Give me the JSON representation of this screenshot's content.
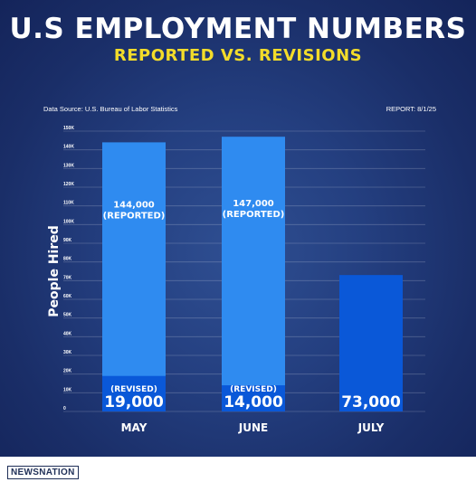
{
  "header": {
    "title": "U.S EMPLOYMENT NUMBERS",
    "subtitle": "REPORTED VS. REVISIONS",
    "source": "Data Source: U.S. Bureau of Labor Statistics",
    "report": "REPORT: 8/1/25"
  },
  "footer": {
    "brand": "NEWSNATION"
  },
  "colors": {
    "background": "#1f3a7a",
    "reported_bar": "#2f8bf0",
    "revised_bar": "#0a58d8",
    "title": "#ffffff",
    "subtitle": "#f3dc2a"
  },
  "chart_data": {
    "type": "bar",
    "title": "U.S EMPLOYMENT NUMBERS",
    "subtitle": "REPORTED VS. REVISIONS",
    "xlabel": "",
    "ylabel": "People Hired",
    "ylim": [
      0,
      150000
    ],
    "grid": true,
    "yticks": [
      "0",
      "10K",
      "20K",
      "30K",
      "40K",
      "50K",
      "60K",
      "70K",
      "80K",
      "90K",
      "100K",
      "110K",
      "120K",
      "130K",
      "140K",
      "150K"
    ],
    "categories": [
      "MAY",
      "JUNE",
      "JULY"
    ],
    "series": [
      {
        "name": "REPORTED",
        "values": [
          144000,
          147000,
          null
        ],
        "labels": [
          "144,000",
          "147,000",
          ""
        ],
        "label_suffix": "(REPORTED)"
      },
      {
        "name": "REVISED",
        "values": [
          19000,
          14000,
          73000
        ],
        "labels": [
          "19,000",
          "14,000",
          "73,000"
        ],
        "label_prefix": "(REVISED)"
      }
    ]
  }
}
